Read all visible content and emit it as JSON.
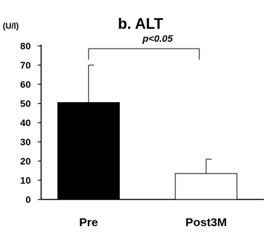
{
  "chart_data": {
    "type": "bar",
    "title": "b. ALT",
    "ylabel": "(U/l)",
    "xlabel": "",
    "categories": [
      "Pre",
      "Post3M"
    ],
    "values": [
      50.5,
      13.5
    ],
    "error_upper": [
      70,
      21
    ],
    "ylim": [
      0,
      80
    ],
    "yticks": [
      0,
      10,
      20,
      30,
      40,
      50,
      60,
      70,
      80
    ],
    "bar_colors": [
      "#000000",
      "#ffffff"
    ],
    "significance": {
      "label": "p<0.05",
      "between": [
        "Pre",
        "Post3M"
      ]
    },
    "grid": false,
    "legend": "none"
  }
}
